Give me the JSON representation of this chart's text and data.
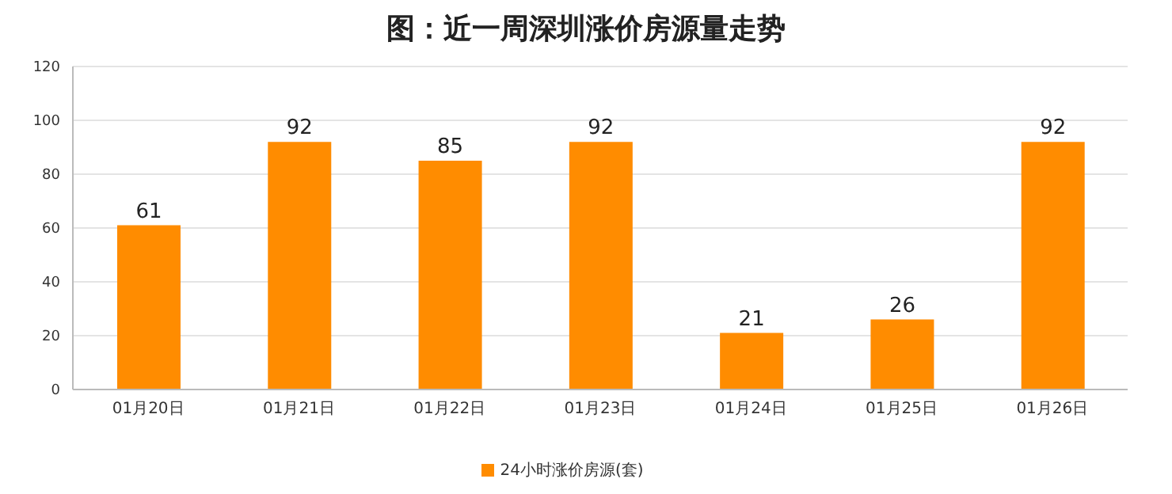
{
  "chart_data": {
    "type": "bar",
    "title": "图：近一周深圳涨价房源量走势",
    "categories": [
      "01月20日",
      "01月21日",
      "01月22日",
      "01月23日",
      "01月24日",
      "01月25日",
      "01月26日"
    ],
    "series": [
      {
        "name": "24小时涨价房源(套)",
        "color": "#ff8c00",
        "values": [
          61,
          92,
          85,
          92,
          21,
          26,
          92
        ]
      }
    ],
    "ylim": [
      0,
      120
    ],
    "yticks": [
      0,
      20,
      40,
      60,
      80,
      100,
      120
    ],
    "grid": "y",
    "legend": "bottom",
    "data_labels": true
  }
}
